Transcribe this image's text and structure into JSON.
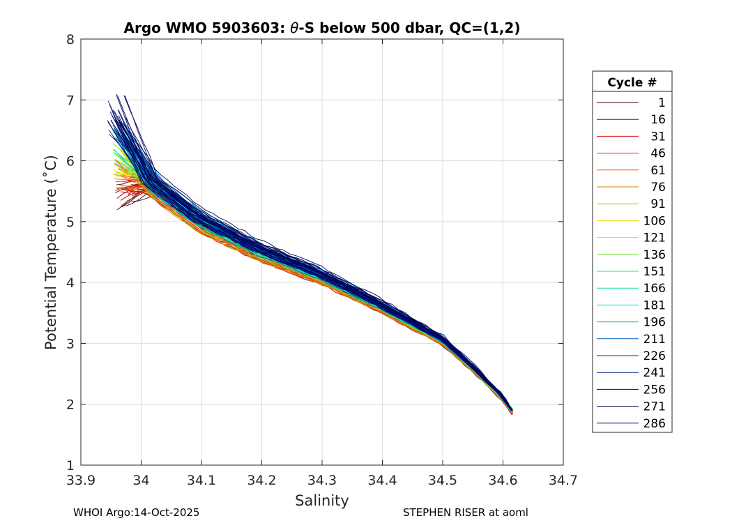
{
  "chart_data": {
    "type": "line",
    "title_prefix": "Argo WMO 5903603: ",
    "title_theta": "θ",
    "title_suffix": "-S below 500 dbar,  QC=(1,2)",
    "xlabel": "Salinity",
    "ylabel": "Potential Temperature (˚C)",
    "xlim": [
      33.9,
      34.7
    ],
    "ylim": [
      1,
      8
    ],
    "xticks": [
      "33.9",
      "34",
      "34.1",
      "34.2",
      "34.3",
      "34.4",
      "34.5",
      "34.6",
      "34.7"
    ],
    "yticks": [
      "1",
      "2",
      "3",
      "4",
      "5",
      "6",
      "7",
      "8"
    ],
    "grid": true,
    "legend_title": "Cycle #",
    "legend_location": "outside-right",
    "series": [
      {
        "name": "1",
        "color": "#3a0000"
      },
      {
        "name": "16",
        "color": "#a00000"
      },
      {
        "name": "31",
        "color": "#d80000"
      },
      {
        "name": "46",
        "color": "#ee2200"
      },
      {
        "name": "61",
        "color": "#f05000"
      },
      {
        "name": "76",
        "color": "#d88000"
      },
      {
        "name": "91",
        "color": "#d0b000"
      },
      {
        "name": "106",
        "color": "#f0e000"
      },
      {
        "name": "121",
        "color": "#b0ee00"
      },
      {
        "name": "136",
        "color": "#70e020"
      },
      {
        "name": "151",
        "color": "#30e050"
      },
      {
        "name": "166",
        "color": "#10e0a0"
      },
      {
        "name": "181",
        "color": "#00d8d8"
      },
      {
        "name": "196",
        "color": "#00a0e0"
      },
      {
        "name": "211",
        "color": "#0060c0"
      },
      {
        "name": "226",
        "color": "#0030a0"
      },
      {
        "name": "241",
        "color": "#001888"
      },
      {
        "name": "256",
        "color": "#000a70"
      },
      {
        "name": "271",
        "color": "#000050"
      },
      {
        "name": "286",
        "color": "#000860"
      }
    ],
    "envelope": {
      "description": "approximate theta-S curve family (salinity, potential temperature) for all cycles",
      "base_curve": [
        [
          33.99,
          6.5
        ],
        [
          34.02,
          5.6
        ],
        [
          34.1,
          5.0
        ],
        [
          34.2,
          4.5
        ],
        [
          34.3,
          4.1
        ],
        [
          34.4,
          3.6
        ],
        [
          34.5,
          3.05
        ],
        [
          34.55,
          2.6
        ],
        [
          34.6,
          2.1
        ],
        [
          34.615,
          1.88
        ]
      ]
    }
  },
  "footer": {
    "left": "WHOI Argo:14-Oct-2025",
    "right": "STEPHEN RISER at aoml"
  }
}
